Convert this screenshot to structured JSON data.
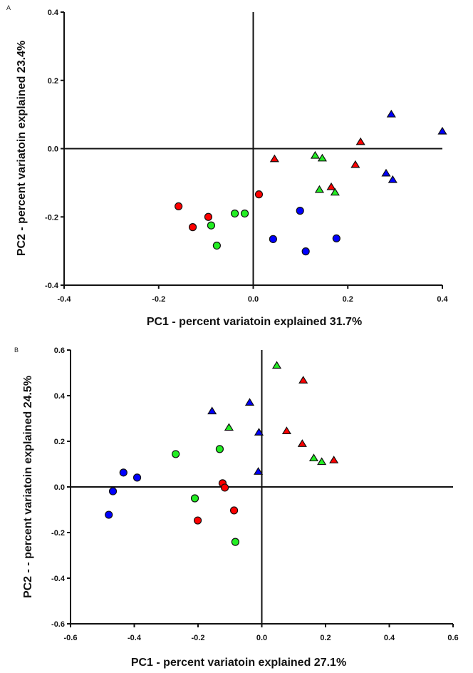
{
  "colors": {
    "Blue": "#0000ff",
    "Red": "#ff0000",
    "Green": "#22ee22"
  },
  "chart_data": [
    {
      "type": "scatter",
      "panel_label": "A",
      "title": "",
      "xlabel": "PC1 - percent variatoin explained 31.7%",
      "ylabel": "PC2 - percent variatoin explained 23.4%",
      "xlim": [
        -0.4,
        0.4
      ],
      "ylim": [
        -0.4,
        0.4
      ],
      "xticks": [
        -0.4,
        -0.2,
        0.0,
        0.2,
        0.4
      ],
      "xtick_labels": [
        "-0.4",
        "-0.2",
        "0.0",
        "0.2",
        "0.4"
      ],
      "yticks": [
        -0.4,
        -0.2,
        0.0,
        0.2,
        0.4
      ],
      "ytick_labels": [
        "-0.4",
        "-0.2",
        "0.0",
        "0.2",
        "0.4"
      ],
      "grid": false,
      "zero_lines": true,
      "series": [
        {
          "name": "Red circle",
          "color": "Red",
          "marker": "circle",
          "x": [
            -0.158,
            -0.095,
            -0.128,
            0.012
          ],
          "y": [
            -0.169,
            -0.2,
            -0.23,
            -0.134
          ]
        },
        {
          "name": "Green circle",
          "color": "Green",
          "marker": "circle",
          "x": [
            -0.089,
            -0.077,
            -0.039,
            -0.018
          ],
          "y": [
            -0.225,
            -0.284,
            -0.19,
            -0.19
          ]
        },
        {
          "name": "Blue circle",
          "color": "Blue",
          "marker": "circle",
          "x": [
            0.099,
            0.042,
            0.176,
            0.111
          ],
          "y": [
            -0.182,
            -0.265,
            -0.263,
            -0.301
          ]
        },
        {
          "name": "Red triangle",
          "color": "Red",
          "marker": "triangle",
          "x": [
            0.045,
            0.227,
            0.216,
            0.165
          ],
          "y": [
            -0.031,
            0.019,
            -0.048,
            -0.113
          ]
        },
        {
          "name": "Green triangle",
          "color": "Green",
          "marker": "triangle",
          "x": [
            0.131,
            0.146,
            0.14,
            0.173
          ],
          "y": [
            -0.021,
            -0.029,
            -0.121,
            -0.129
          ]
        },
        {
          "name": "Blue triangle",
          "color": "Blue",
          "marker": "triangle",
          "x": [
            0.292,
            0.4,
            0.281,
            0.295
          ],
          "y": [
            0.1,
            0.05,
            -0.073,
            -0.092
          ]
        }
      ]
    },
    {
      "type": "scatter",
      "panel_label": "B",
      "title": "",
      "xlabel": "PC1 - percent variatoin explained 27.1%",
      "ylabel": "PC2 - - percent variatoin explained 24.5%",
      "xlim": [
        -0.6,
        0.6
      ],
      "ylim": [
        -0.6,
        0.6
      ],
      "xticks": [
        -0.6,
        -0.4,
        -0.2,
        0.0,
        0.2,
        0.4,
        0.6
      ],
      "xtick_labels": [
        "-0.6",
        "-0.4",
        "-0.2",
        "0.0",
        "0.2",
        "0.4",
        "0.6"
      ],
      "yticks": [
        -0.6,
        -0.4,
        -0.2,
        0.0,
        0.2,
        0.4,
        0.6
      ],
      "ytick_labels": [
        "-0.6",
        "-0.4",
        "-0.2",
        "0.0",
        "0.2",
        "0.4",
        "0.6"
      ],
      "grid": false,
      "zero_lines": true,
      "series": [
        {
          "name": "Blue circle",
          "color": "Blue",
          "marker": "circle",
          "x": [
            -0.434,
            -0.391,
            -0.467,
            -0.48
          ],
          "y": [
            0.063,
            0.041,
            -0.019,
            -0.122
          ]
        },
        {
          "name": "Green circle",
          "color": "Green",
          "marker": "circle",
          "x": [
            -0.27,
            -0.132,
            -0.21,
            -0.083
          ],
          "y": [
            0.144,
            0.166,
            -0.05,
            -0.241
          ]
        },
        {
          "name": "Red circle",
          "color": "Red",
          "marker": "circle",
          "x": [
            -0.123,
            -0.116,
            -0.201,
            -0.087
          ],
          "y": [
            0.016,
            -0.003,
            -0.147,
            -0.103
          ]
        },
        {
          "name": "Blue triangle",
          "color": "Blue",
          "marker": "triangle",
          "x": [
            -0.156,
            -0.038,
            -0.009,
            -0.011
          ],
          "y": [
            0.331,
            0.369,
            0.238,
            0.066
          ]
        },
        {
          "name": "Green triangle",
          "color": "Green",
          "marker": "triangle",
          "x": [
            -0.103,
            0.047,
            0.163,
            0.188
          ],
          "y": [
            0.259,
            0.531,
            0.125,
            0.109
          ]
        },
        {
          "name": "Red triangle",
          "color": "Red",
          "marker": "triangle",
          "x": [
            0.13,
            0.078,
            0.127,
            0.226
          ],
          "y": [
            0.466,
            0.244,
            0.188,
            0.116
          ]
        }
      ]
    }
  ]
}
